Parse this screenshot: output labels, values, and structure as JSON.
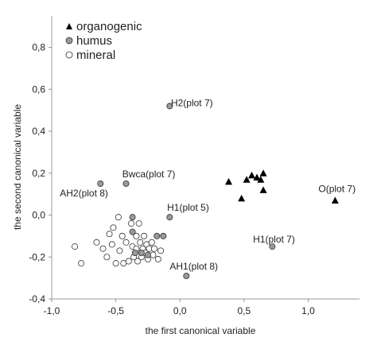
{
  "chart_data": {
    "type": "scatter",
    "title": "",
    "xlabel": "the first canonical variable",
    "ylabel": "the second canonical variable",
    "xlim": [
      -1.0,
      1.4
    ],
    "ylim": [
      -0.4,
      0.95
    ],
    "x_ticks": [
      -1.0,
      -0.5,
      0.0,
      0.5,
      1.0
    ],
    "x_tick_labels": [
      "-1,0",
      "-0,5",
      "0,0",
      "0,5",
      "1,0"
    ],
    "y_ticks": [
      -0.4,
      -0.2,
      0.0,
      0.2,
      0.4,
      0.6,
      0.8
    ],
    "y_tick_labels": [
      "-0,4",
      "-0,2",
      "0,0",
      "0,2",
      "0,4",
      "0,6",
      "0,8"
    ],
    "grid": false,
    "legend_position": "top-left",
    "colors": {
      "organogenic": "#000000",
      "humus": "#999999",
      "mineral": "#ffffff",
      "outline": "#333333"
    },
    "series": [
      {
        "name": "organogenic",
        "marker": "triangle",
        "points": [
          [
            0.38,
            0.16
          ],
          [
            0.48,
            0.08
          ],
          [
            0.52,
            0.17
          ],
          [
            0.56,
            0.19
          ],
          [
            0.6,
            0.18
          ],
          [
            0.63,
            0.17
          ],
          [
            0.65,
            0.2
          ],
          [
            0.65,
            0.12
          ],
          [
            1.21,
            0.07
          ]
        ]
      },
      {
        "name": "humus",
        "marker": "circle",
        "points": [
          [
            -0.08,
            0.52
          ],
          [
            -0.62,
            0.15
          ],
          [
            -0.42,
            0.15
          ],
          [
            -0.08,
            -0.01
          ],
          [
            -0.37,
            -0.01
          ],
          [
            -0.37,
            -0.08
          ],
          [
            -0.18,
            -0.1
          ],
          [
            -0.13,
            -0.1
          ],
          [
            0.72,
            -0.15
          ],
          [
            0.05,
            -0.29
          ],
          [
            -0.35,
            -0.18
          ],
          [
            -0.3,
            -0.18
          ],
          [
            -0.25,
            -0.19
          ]
        ]
      },
      {
        "name": "mineral",
        "marker": "circle",
        "points": [
          [
            -0.82,
            -0.15
          ],
          [
            -0.77,
            -0.23
          ],
          [
            -0.65,
            -0.13
          ],
          [
            -0.6,
            -0.16
          ],
          [
            -0.57,
            -0.2
          ],
          [
            -0.55,
            -0.09
          ],
          [
            -0.53,
            -0.14
          ],
          [
            -0.52,
            -0.06
          ],
          [
            -0.5,
            -0.23
          ],
          [
            -0.48,
            -0.01
          ],
          [
            -0.47,
            -0.17
          ],
          [
            -0.45,
            -0.1
          ],
          [
            -0.44,
            -0.23
          ],
          [
            -0.42,
            -0.13
          ],
          [
            -0.4,
            -0.22
          ],
          [
            -0.38,
            -0.04
          ],
          [
            -0.37,
            -0.15
          ],
          [
            -0.36,
            -0.2
          ],
          [
            -0.34,
            -0.1
          ],
          [
            -0.34,
            -0.16
          ],
          [
            -0.33,
            -0.22
          ],
          [
            -0.32,
            -0.04
          ],
          [
            -0.31,
            -0.13
          ],
          [
            -0.3,
            -0.2
          ],
          [
            -0.29,
            -0.16
          ],
          [
            -0.28,
            -0.1
          ],
          [
            -0.27,
            -0.18
          ],
          [
            -0.26,
            -0.14
          ],
          [
            -0.25,
            -0.21
          ],
          [
            -0.24,
            -0.16
          ],
          [
            -0.22,
            -0.13
          ],
          [
            -0.21,
            -0.19
          ],
          [
            -0.2,
            -0.16
          ],
          [
            -0.17,
            -0.21
          ],
          [
            -0.15,
            -0.17
          ]
        ]
      }
    ],
    "annotations": [
      {
        "text": "H2(plot 7)",
        "x": -0.07,
        "y": 0.52,
        "anchor": "start"
      },
      {
        "text": "Bwca(plot 7)",
        "x": -0.45,
        "y": 0.18,
        "anchor": "start"
      },
      {
        "text": "AH2(plot 8)",
        "x": -0.56,
        "y": 0.09,
        "anchor": "end"
      },
      {
        "text": "H1(plot 5)",
        "x": -0.1,
        "y": 0.02,
        "anchor": "start"
      },
      {
        "text": "O(plot 7)",
        "x": 1.08,
        "y": 0.11,
        "anchor": "start"
      },
      {
        "text": "H1(plot 7)",
        "x": 0.57,
        "y": -0.13,
        "anchor": "start"
      },
      {
        "text": "AH1(plot 8)",
        "x": -0.08,
        "y": -0.26,
        "anchor": "start"
      }
    ]
  }
}
